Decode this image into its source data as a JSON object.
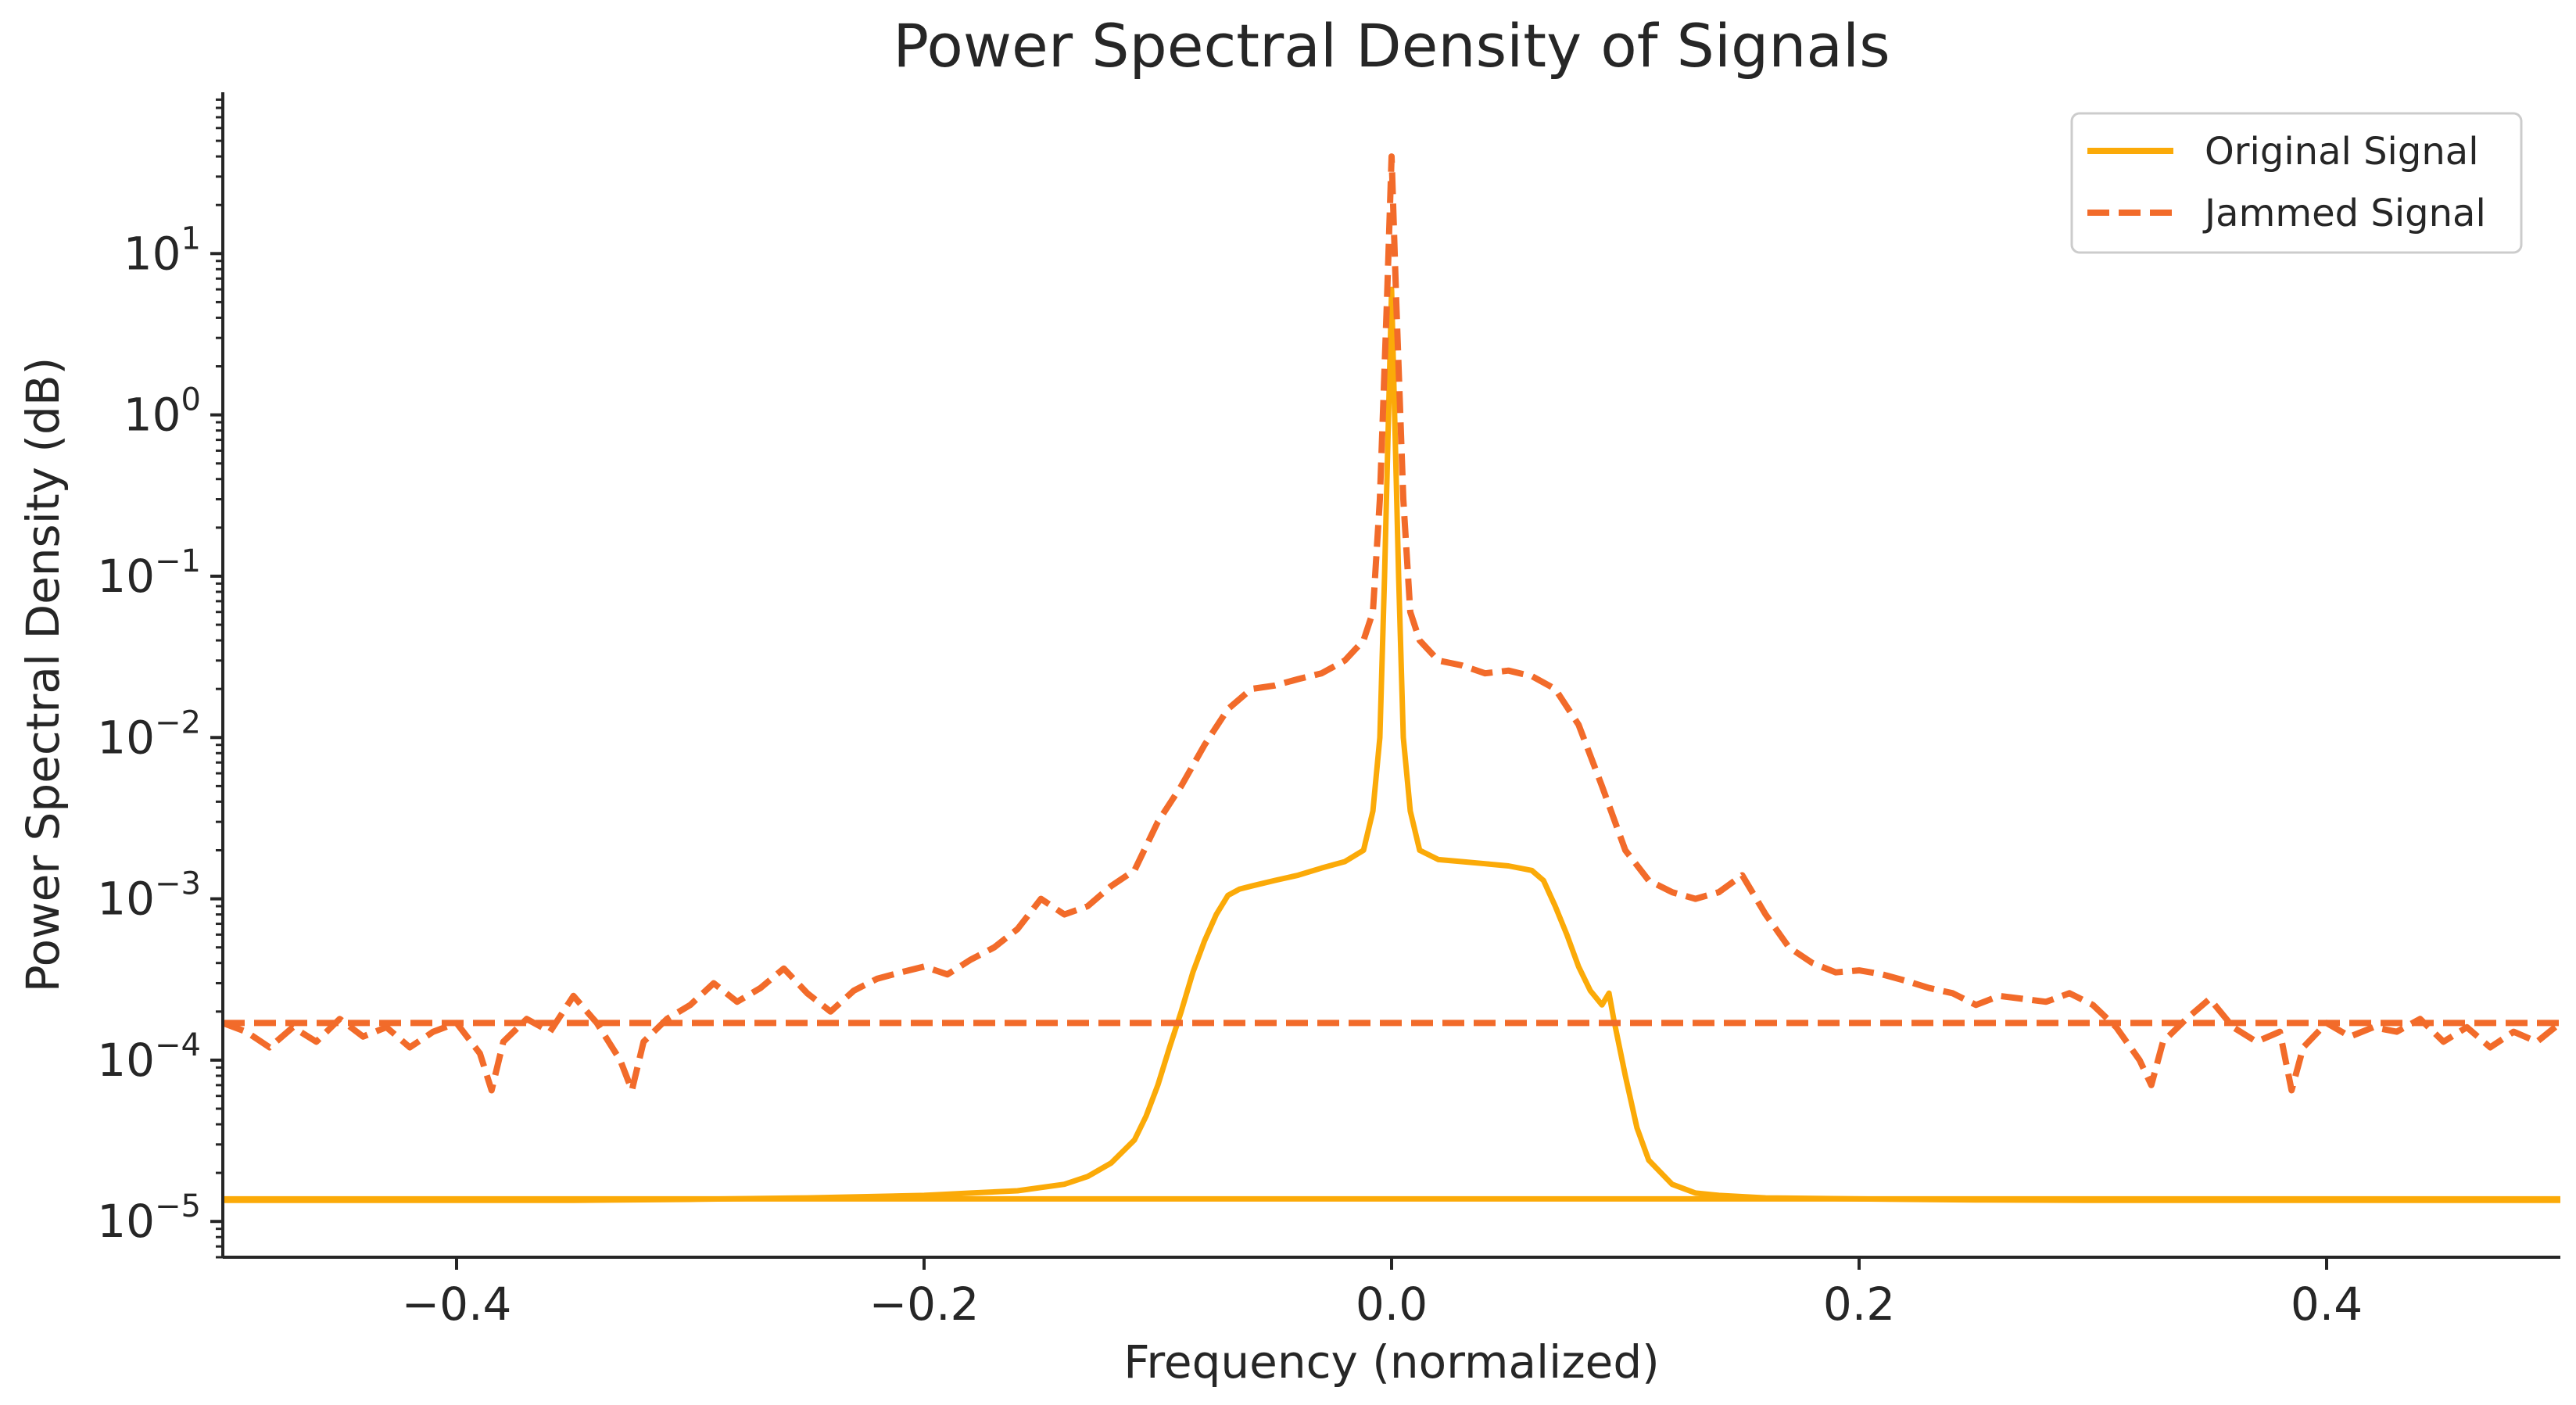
{
  "chart_data": {
    "type": "line",
    "title": "Power Spectral Density of Signals",
    "xlabel": "Frequency (normalized)",
    "ylabel": "Power Spectral Density (dB)",
    "xscale": "linear",
    "yscale": "log",
    "xlim": [
      -0.5,
      0.5
    ],
    "ylim": [
      6e-06,
      100
    ],
    "xticks": [
      -0.4,
      -0.2,
      0.0,
      0.2,
      0.4
    ],
    "xtick_labels": [
      "−0.4",
      "−0.2",
      "0.0",
      "0.2",
      "0.4"
    ],
    "yticks": [
      1e-05,
      0.0001,
      0.001,
      0.01,
      0.1,
      1,
      10
    ],
    "ytick_labels": [
      {
        "base": "10",
        "exp": "−5"
      },
      {
        "base": "10",
        "exp": "−4"
      },
      {
        "base": "10",
        "exp": "−3"
      },
      {
        "base": "10",
        "exp": "−2"
      },
      {
        "base": "10",
        "exp": "−1"
      },
      {
        "base": "10",
        "exp": "0"
      },
      {
        "base": "10",
        "exp": "1"
      }
    ],
    "grid": false,
    "legend_position": "top-right",
    "series": [
      {
        "name": "Original Signal",
        "color": "#FBAA08",
        "style": "solid",
        "x": [
          -0.5,
          -0.45,
          -0.4,
          -0.35,
          -0.3,
          -0.25,
          -0.2,
          -0.18,
          -0.16,
          -0.14,
          -0.13,
          -0.12,
          -0.11,
          -0.105,
          -0.1,
          -0.095,
          -0.09,
          -0.085,
          -0.08,
          -0.075,
          -0.07,
          -0.065,
          -0.06,
          -0.05,
          -0.04,
          -0.03,
          -0.02,
          -0.012,
          -0.008,
          -0.005,
          -0.003,
          -0.001,
          0.0,
          0.001,
          0.003,
          0.005,
          0.008,
          0.012,
          0.02,
          0.03,
          0.04,
          0.05,
          0.06,
          0.065,
          0.07,
          0.075,
          0.08,
          0.085,
          0.09,
          0.093,
          0.095,
          0.1,
          0.105,
          0.11,
          0.12,
          0.13,
          0.14,
          0.16,
          0.2,
          0.25,
          0.3,
          0.35,
          0.4,
          0.45,
          0.5
        ],
        "y": [
          1.35e-05,
          1.35e-05,
          1.35e-05,
          1.35e-05,
          1.37e-05,
          1.4e-05,
          1.45e-05,
          1.5e-05,
          1.55e-05,
          1.7e-05,
          1.9e-05,
          2.3e-05,
          3.2e-05,
          4.5e-05,
          7e-05,
          0.00012,
          0.0002,
          0.00035,
          0.00055,
          0.0008,
          0.00105,
          0.00115,
          0.0012,
          0.0013,
          0.0014,
          0.00155,
          0.0017,
          0.002,
          0.0035,
          0.01,
          0.1,
          1.5,
          6,
          1.5,
          0.1,
          0.01,
          0.0035,
          0.002,
          0.00175,
          0.0017,
          0.00165,
          0.0016,
          0.0015,
          0.0013,
          0.0009,
          0.0006,
          0.00038,
          0.00027,
          0.00022,
          0.00026,
          0.00018,
          8e-05,
          3.8e-05,
          2.4e-05,
          1.7e-05,
          1.5e-05,
          1.45e-05,
          1.4e-05,
          1.38e-05,
          1.36e-05,
          1.35e-05,
          1.35e-05,
          1.35e-05,
          1.35e-05,
          1.35e-05
        ]
      },
      {
        "name": "Jammed Signal",
        "color": "#F26B2A",
        "style": "dashed",
        "x": [
          -0.5,
          -0.49,
          -0.48,
          -0.47,
          -0.46,
          -0.45,
          -0.44,
          -0.43,
          -0.42,
          -0.41,
          -0.4,
          -0.39,
          -0.385,
          -0.38,
          -0.37,
          -0.36,
          -0.35,
          -0.34,
          -0.33,
          -0.325,
          -0.32,
          -0.31,
          -0.3,
          -0.29,
          -0.28,
          -0.27,
          -0.26,
          -0.25,
          -0.24,
          -0.23,
          -0.22,
          -0.21,
          -0.2,
          -0.19,
          -0.18,
          -0.17,
          -0.16,
          -0.15,
          -0.14,
          -0.13,
          -0.12,
          -0.11,
          -0.1,
          -0.09,
          -0.08,
          -0.07,
          -0.06,
          -0.05,
          -0.04,
          -0.03,
          -0.02,
          -0.012,
          -0.008,
          -0.005,
          -0.002,
          0.0,
          0.002,
          0.005,
          0.008,
          0.012,
          0.02,
          0.03,
          0.04,
          0.05,
          0.06,
          0.07,
          0.08,
          0.09,
          0.1,
          0.11,
          0.12,
          0.13,
          0.14,
          0.15,
          0.16,
          0.17,
          0.18,
          0.19,
          0.2,
          0.21,
          0.22,
          0.23,
          0.24,
          0.25,
          0.26,
          0.27,
          0.28,
          0.29,
          0.3,
          0.31,
          0.32,
          0.325,
          0.33,
          0.34,
          0.35,
          0.36,
          0.37,
          0.38,
          0.385,
          0.39,
          0.4,
          0.41,
          0.42,
          0.43,
          0.44,
          0.45,
          0.46,
          0.47,
          0.48,
          0.49,
          0.5
        ],
        "y": [
          0.00017,
          0.00015,
          0.00012,
          0.00016,
          0.00013,
          0.00018,
          0.00014,
          0.00016,
          0.00012,
          0.00015,
          0.00017,
          0.00011,
          6.5e-05,
          0.00013,
          0.00018,
          0.00015,
          0.00025,
          0.00017,
          0.0001,
          6.5e-05,
          0.00013,
          0.00018,
          0.00022,
          0.0003,
          0.00023,
          0.00028,
          0.00037,
          0.00026,
          0.0002,
          0.00027,
          0.00032,
          0.00035,
          0.00038,
          0.00034,
          0.00042,
          0.0005,
          0.00065,
          0.001,
          0.0008,
          0.0009,
          0.0012,
          0.0015,
          0.003,
          0.005,
          0.009,
          0.015,
          0.02,
          0.021,
          0.023,
          0.025,
          0.03,
          0.04,
          0.06,
          0.3,
          5,
          40,
          5,
          0.3,
          0.06,
          0.04,
          0.03,
          0.028,
          0.025,
          0.026,
          0.024,
          0.02,
          0.012,
          0.005,
          0.002,
          0.0013,
          0.0011,
          0.001,
          0.0011,
          0.0014,
          0.0008,
          0.0005,
          0.0004,
          0.00035,
          0.00036,
          0.00034,
          0.00031,
          0.00028,
          0.00026,
          0.00022,
          0.00025,
          0.00024,
          0.00023,
          0.00026,
          0.00022,
          0.00016,
          0.0001,
          7e-05,
          0.00013,
          0.00018,
          0.00024,
          0.00016,
          0.00013,
          0.00015,
          6.5e-05,
          0.00012,
          0.00017,
          0.00014,
          0.00016,
          0.00015,
          0.00018,
          0.00013,
          0.00016,
          0.00012,
          0.00015,
          0.00013,
          0.00017
        ]
      },
      {
        "name": "",
        "color": "#FBAA08",
        "style": "solid",
        "x": [
          -0.5,
          0.5
        ],
        "y": [
          1.38e-05,
          1.38e-05
        ]
      },
      {
        "name": "",
        "color": "#F26B2A",
        "style": "dashed",
        "x": [
          -0.5,
          0.5
        ],
        "y": [
          0.00017,
          0.00017
        ]
      }
    ]
  }
}
